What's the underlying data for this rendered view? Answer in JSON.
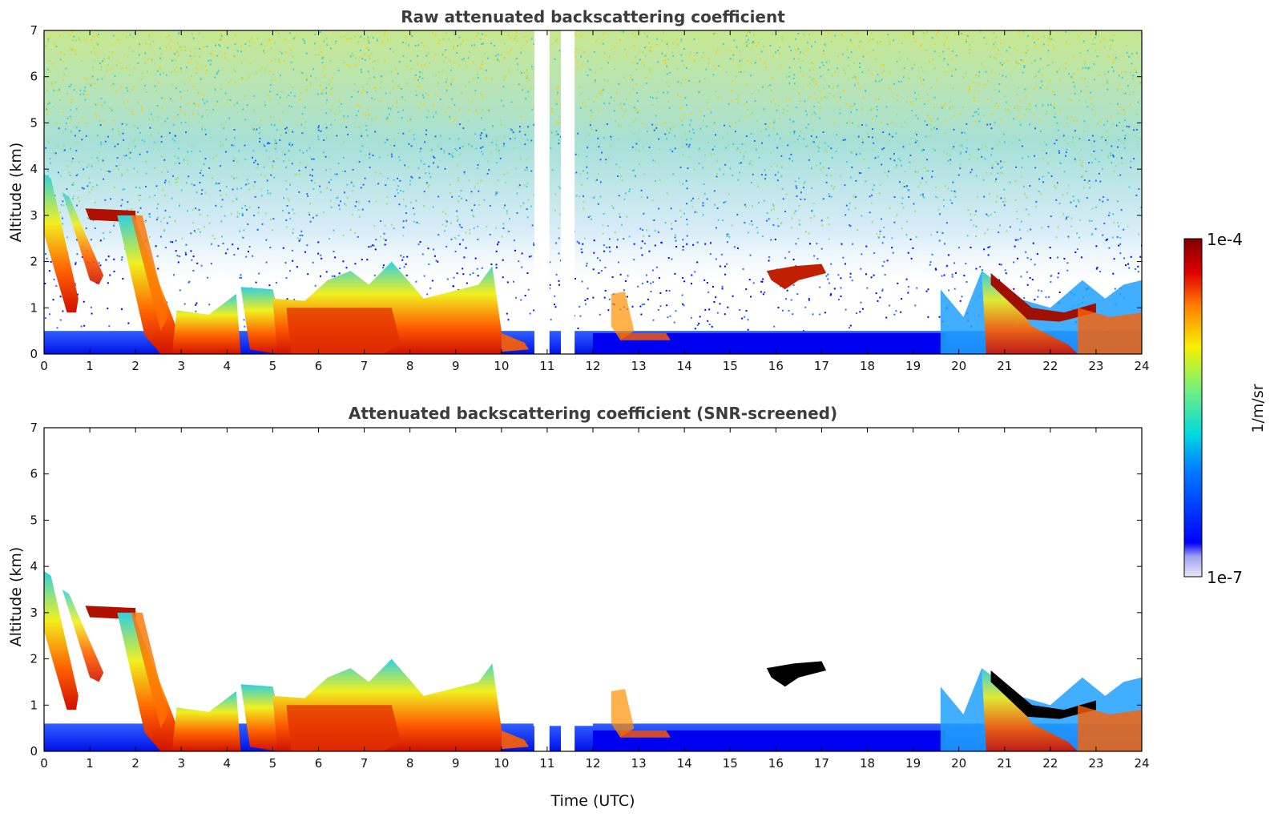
{
  "chart_data": [
    {
      "type": "heatmap",
      "title": "Raw attenuated backscattering coefficient",
      "xlabel": "",
      "ylabel": "Altitude (km)",
      "xlim": [
        0,
        24
      ],
      "ylim": [
        0,
        7
      ],
      "x_ticks": [
        "0",
        "1",
        "2",
        "3",
        "4",
        "5",
        "6",
        "7",
        "8",
        "9",
        "10",
        "11",
        "12",
        "13",
        "14",
        "15",
        "16",
        "17",
        "18",
        "19",
        "20",
        "21",
        "22",
        "23",
        "24"
      ],
      "y_ticks": [
        "0",
        "1",
        "2",
        "3",
        "4",
        "5",
        "6",
        "7"
      ],
      "grid": false,
      "screened": false,
      "data_gaps_utc": [
        [
          10.72,
          11.05
        ],
        [
          11.3,
          11.6
        ]
      ],
      "layers": [
        {
          "name": "boundary-layer aerosol",
          "x_start": 0,
          "x_end": 24,
          "top_km": 0.5
        },
        {
          "name": "descending cloud 1",
          "x_start": 0.0,
          "x_end": 0.8,
          "top_km": 3.8,
          "bottom_km": 0.9
        },
        {
          "name": "descending cloud 2",
          "x_start": 0.4,
          "x_end": 1.3,
          "top_km": 3.4,
          "bottom_km": 1.5
        },
        {
          "name": "cloud band",
          "x_start": 0.8,
          "x_end": 2.0,
          "top_km": 3.1,
          "bottom_km": 2.8
        },
        {
          "name": "descending plume",
          "x_start": 1.6,
          "x_end": 3.0,
          "top_km": 3.0,
          "bottom_km": 0.0
        },
        {
          "name": "aerosol layer",
          "x_start": 3.0,
          "x_end": 4.3,
          "top_km": 1.0,
          "bottom_km": 0.0
        },
        {
          "name": "descending layer",
          "x_start": 4.3,
          "x_end": 5.2,
          "top_km": 1.4,
          "bottom_km": 0.0
        },
        {
          "name": "thick aerosol layer",
          "x_start": 5.0,
          "x_end": 10.0,
          "top_km": 1.8,
          "bottom_km": 0.0
        },
        {
          "name": "elevated layer",
          "x_start": 15.8,
          "x_end": 17.1,
          "top_km": 1.9,
          "bottom_km": 1.4
        },
        {
          "name": "evening cloud band",
          "x_start": 20.6,
          "x_end": 23.2,
          "top_km": 1.7,
          "bottom_km": 0.6
        },
        {
          "name": "evening aerosol",
          "x_start": 19.6,
          "x_end": 24.0,
          "top_km": 1.5,
          "bottom_km": 0.0
        }
      ]
    },
    {
      "type": "heatmap",
      "title": "Attenuated backscattering coefficient (SNR-screened)",
      "xlabel": "Time (UTC)",
      "ylabel": "Altitude (km)",
      "xlim": [
        0,
        24
      ],
      "ylim": [
        0,
        7
      ],
      "x_ticks": [
        "0",
        "1",
        "2",
        "3",
        "4",
        "5",
        "6",
        "7",
        "8",
        "9",
        "10",
        "11",
        "12",
        "13",
        "14",
        "15",
        "16",
        "17",
        "18",
        "19",
        "20",
        "21",
        "22",
        "23",
        "24"
      ],
      "y_ticks": [
        "0",
        "1",
        "2",
        "3",
        "4",
        "5",
        "6",
        "7"
      ],
      "grid": false,
      "screened": true
    }
  ],
  "colorbar": {
    "label": "1/m/sr",
    "max_label": "1e-4",
    "min_label": "1e-7",
    "scale": "log",
    "min": 1e-07,
    "max": 0.0001,
    "colors": [
      "#e8e8f8",
      "#0000ff",
      "#00c8ff",
      "#80ff80",
      "#ffff00",
      "#ff6000",
      "#800000"
    ]
  }
}
